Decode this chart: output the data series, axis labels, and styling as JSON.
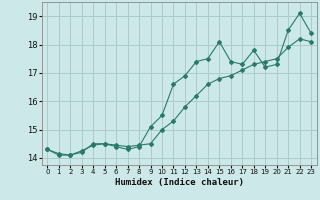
{
  "x": [
    0,
    1,
    2,
    3,
    4,
    5,
    6,
    7,
    8,
    9,
    10,
    11,
    12,
    13,
    14,
    15,
    16,
    17,
    18,
    19,
    20,
    21,
    22,
    23
  ],
  "line1_jagged": [
    14.3,
    14.1,
    14.1,
    14.2,
    14.5,
    14.5,
    14.4,
    14.3,
    14.4,
    15.1,
    15.5,
    16.6,
    16.9,
    17.4,
    17.5,
    18.1,
    17.4,
    17.3,
    17.8,
    17.2,
    17.3,
    18.5,
    19.1,
    18.4
  ],
  "line2_smooth": [
    14.3,
    14.15,
    14.1,
    14.25,
    14.45,
    14.5,
    14.45,
    14.4,
    14.45,
    14.5,
    15.0,
    15.3,
    15.8,
    16.2,
    16.6,
    16.8,
    16.9,
    17.1,
    17.3,
    17.4,
    17.5,
    17.9,
    18.2,
    18.1
  ],
  "bg_color": "#cce8e8",
  "grid_color": "#aacccc",
  "line_color": "#2a7a6a",
  "xlabel": "Humidex (Indice chaleur)",
  "xlim": [
    -0.5,
    23.5
  ],
  "ylim": [
    13.75,
    19.5
  ],
  "yticks": [
    14,
    15,
    16,
    17,
    18,
    19
  ],
  "xticks": [
    0,
    1,
    2,
    3,
    4,
    5,
    6,
    7,
    8,
    9,
    10,
    11,
    12,
    13,
    14,
    15,
    16,
    17,
    18,
    19,
    20,
    21,
    22,
    23
  ]
}
